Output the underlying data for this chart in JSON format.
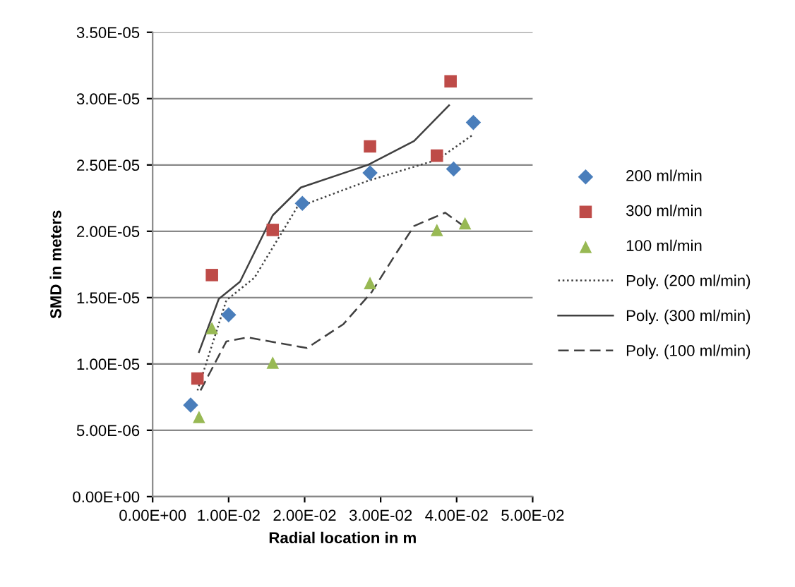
{
  "chart_data": {
    "type": "scatter",
    "xlabel": "Radial location in m",
    "ylabel": "SMD in meters",
    "xlim": [
      0,
      0.05
    ],
    "ylim": [
      0,
      3.5e-05
    ],
    "xticks": [
      {
        "value": 0,
        "label": "0.00E+00"
      },
      {
        "value": 0.01,
        "label": "1.00E-02"
      },
      {
        "value": 0.02,
        "label": "2.00E-02"
      },
      {
        "value": 0.03,
        "label": "3.00E-02"
      },
      {
        "value": 0.04,
        "label": "4.00E-02"
      },
      {
        "value": 0.05,
        "label": "5.00E-02"
      }
    ],
    "yticks": [
      {
        "value": 0,
        "label": "0.00E+00"
      },
      {
        "value": 5e-06,
        "label": "5.00E-06"
      },
      {
        "value": 1e-05,
        "label": "1.00E-05"
      },
      {
        "value": 1.5e-05,
        "label": "1.50E-05"
      },
      {
        "value": 2e-05,
        "label": "2.00E-05"
      },
      {
        "value": 2.5e-05,
        "label": "2.50E-05"
      },
      {
        "value": 3e-05,
        "label": "3.00E-05"
      },
      {
        "value": 3.5e-05,
        "label": "3.50E-05"
      }
    ],
    "grid": "y",
    "legend": "right",
    "series": [
      {
        "name": "200 ml/min",
        "marker": "diamond",
        "color": "#4a7ebb",
        "x": [
          0.005,
          0.01,
          0.0197,
          0.0286,
          0.0396,
          0.0422
        ],
        "values": [
          6.9e-06,
          1.37e-05,
          2.21e-05,
          2.44e-05,
          2.47e-05,
          2.82e-05
        ]
      },
      {
        "name": "300 ml/min",
        "marker": "square",
        "color": "#be4b48",
        "x": [
          0.0059,
          0.0078,
          0.0158,
          0.0286,
          0.0374,
          0.0392
        ],
        "values": [
          8.9e-06,
          1.67e-05,
          2.01e-05,
          2.64e-05,
          2.57e-05,
          3.13e-05
        ]
      },
      {
        "name": "100 ml/min",
        "marker": "triangle",
        "color": "#98b954",
        "x": [
          0.0061,
          0.0078,
          0.0158,
          0.0286,
          0.0374,
          0.0411
        ],
        "values": [
          6e-06,
          1.27e-05,
          1.01e-05,
          1.61e-05,
          2.01e-05,
          2.06e-05
        ]
      },
      {
        "name": "Poly. (200 ml/min)",
        "type": "line",
        "line_style": "dotted",
        "color": "#404040",
        "x": [
          0.0059,
          0.0097,
          0.0134,
          0.019,
          0.0283,
          0.0375,
          0.0422
        ],
        "values": [
          8e-06,
          1.48e-05,
          1.65e-05,
          2.18e-05,
          2.38e-05,
          2.54e-05,
          2.73e-05
        ]
      },
      {
        "name": "Poly. (300 ml/min)",
        "type": "line",
        "line_style": "solid",
        "color": "#404040",
        "x": [
          0.0061,
          0.0087,
          0.0115,
          0.0158,
          0.0195,
          0.0283,
          0.0344,
          0.039
        ],
        "values": [
          1.09e-05,
          1.49e-05,
          1.62e-05,
          2.12e-05,
          2.33e-05,
          2.5e-05,
          2.68e-05,
          2.95e-05
        ]
      },
      {
        "name": "Poly. (100 ml/min)",
        "type": "line",
        "line_style": "dashed",
        "color": "#404040",
        "x": [
          0.0063,
          0.0097,
          0.0125,
          0.0203,
          0.0251,
          0.0288,
          0.032,
          0.0344,
          0.0385,
          0.0409
        ],
        "values": [
          8e-06,
          1.17e-05,
          1.2e-05,
          1.12e-05,
          1.3e-05,
          1.54e-05,
          1.83e-05,
          2.04e-05,
          2.14e-05,
          2.04e-05
        ]
      }
    ]
  }
}
